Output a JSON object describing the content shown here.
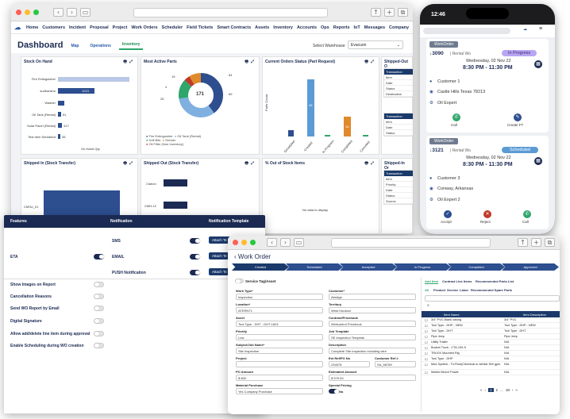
{
  "dashboard": {
    "nav": [
      "Home",
      "Customers",
      "Incident",
      "Proposal",
      "Project",
      "Work Orders",
      "Scheduler",
      "Field Tickets",
      "Smart Contracts",
      "Assets",
      "Inventory",
      "Accounts",
      "Ops",
      "Reports",
      "IoT",
      "Messages",
      "Company"
    ],
    "title": "Dashboard",
    "tabs": [
      "Map",
      "Operations",
      "Inventory"
    ],
    "warehouse_label": "Select Warehouse",
    "warehouse_value": "Evacuon",
    "panels": {
      "stock_on_hand": "Stock On Hand",
      "most_active": "Most Active Parts",
      "orders_status": "Current Orders Status (Part Request)",
      "shipped_out_top": "Shipped-Out O",
      "shipped_in": "Shipped In (Stock Transfer)",
      "shipped_out": "Shipped Out (Stock Transfer)",
      "out_of_stock": "% Out of Stock Items",
      "shipped_in_side": "Shipped-In Or"
    },
    "stock_items": [
      "Fire Extinguisher",
      "sudhanshu",
      "Washer",
      "Oil Tank (Rental)",
      "Solar Panel (Rental)",
      "Test Item Serialized"
    ],
    "stock_values": [
      "",
      "1213",
      "",
      "51",
      "417",
      "35"
    ],
    "stock_xlabel": "On-Hand Qty.",
    "donut_center": "171",
    "donut_labels": [
      "19",
      "4",
      "25",
      "69",
      "54"
    ],
    "legend": [
      "Fire Extinguisher",
      "Oil Tank (Rental)",
      "Drill Bits",
      "Oil Filter (Non Inventory)",
      "Grinder"
    ],
    "status_ylabel": "Parts Count",
    "status_values": [
      "6",
      "45",
      "1",
      "16",
      "1"
    ],
    "status_cats": [
      "Scheduled",
      "Created",
      "In Progress",
      "Completed",
      "Canceled"
    ],
    "side_rows": [
      "Transaction",
      "Item",
      "Date",
      "Status",
      "Destination"
    ],
    "side_rows2": [
      "Transaction",
      "Item",
      "Date",
      "Status"
    ],
    "side_rows3": [
      "Transaction",
      "Item",
      "Priority",
      "Date",
      "Status",
      "Source"
    ],
    "shipped_in_cat": "CMSU_01",
    "shipped_out_cats": [
      "Clarion",
      "CMH-12"
    ],
    "no_data": "No data to display"
  },
  "features": {
    "headers": [
      "Features",
      "Notification",
      "Notification Template"
    ],
    "eta": "ETA",
    "notifications": [
      "SMS",
      "EMAIL",
      "PUSH Notification"
    ],
    "attach": "Attach Te",
    "rows": [
      "Show Images on Report",
      "Cancellation Reasons",
      "Send WO Report by Email",
      "Digital Signature",
      "Allow add/delete line item during approval",
      "Enable Scheduling during WO creation"
    ]
  },
  "workorder": {
    "back": "‹",
    "title": "Work Order",
    "steps": [
      "Created",
      "Scheduled",
      "Accepted",
      "In Progress",
      "Completed",
      "Approved"
    ],
    "service_tag": "Service Tag/Asset",
    "fields": {
      "work_type": {
        "label": "Work Type*",
        "value": "Inspection"
      },
      "customer": {
        "label": "Customer*",
        "value": "Abridge"
      },
      "location": {
        "label": "Location*",
        "value": "ATERNT1"
      },
      "territory": {
        "label": "Territory",
        "value": "West Houston"
      },
      "asset": {
        "label": "Asset",
        "value": "Tool Type - DHT - DHT-1824"
      },
      "contract": {
        "label": "Contract/Pricebook",
        "value": "Wellcontrol Pricebook"
      },
      "priority": {
        "label": "Priority",
        "value": "Low"
      },
      "job_template": {
        "label": "Job Template",
        "value": "SE Inspection Template"
      },
      "subject": {
        "label": "Subject/Job Name*",
        "value": "Site Inspection"
      },
      "description": {
        "label": "Description",
        "value": "Complete Site Inspection including wire"
      },
      "project": {
        "label": "Project",
        "value": ""
      },
      "ext_ref": {
        "label": "Ext Ref/PO No",
        "value": "234578"
      },
      "customer_ref": {
        "label": "Customer Ref #",
        "value": "SA_58789"
      },
      "po_amount": {
        "label": "PO Amount",
        "value": "800"
      },
      "estimated": {
        "label": "Estimated Amount",
        "value": "575.00"
      },
      "material": {
        "label": "Material Purchase",
        "value": "Yes Company Purchase"
      },
      "special": {
        "label": "Special Pricing",
        "value": "No"
      }
    },
    "right_tabs": [
      "Add Item",
      "Contract Line Items",
      "Recommended Parts List"
    ],
    "filter_tabs": [
      "All",
      "Product",
      "Service",
      "Labor",
      "Recommended Spare Parts"
    ],
    "cols": [
      "Item Name",
      "Item Description"
    ],
    "items": [
      [
        "3/4\" PVC Blank casing",
        "3/4\" PVC"
      ],
      [
        "Tool Type - DHP - NEW",
        "Tool Type - DHP - NEW"
      ],
      [
        "Tool Type - DHT",
        "Tool Type - DHT"
      ],
      [
        "Pipe Jeep",
        "Pipe Jeep"
      ],
      [
        "Utility Trailer",
        "N/A"
      ],
      [
        "Bucket Truck - CTA-100-S",
        "N/A"
      ],
      [
        "TRUCK Mounted Rig",
        "N/A"
      ],
      [
        "Tool Type - DHP",
        "N/A"
      ],
      [
        "Mud System - Tri-Flow(Chemical or similar 500 gpm",
        "N/A"
      ],
      [
        "Mobile Bench Power",
        "N/A"
      ]
    ],
    "pages": [
      "«",
      "‹",
      "1",
      "2",
      "...",
      "18",
      "›",
      "»"
    ]
  },
  "phone": {
    "time": "12:46",
    "card1": {
      "badge": "WorkOrder",
      "status": "In Progress",
      "id": "3090",
      "type": "| Rental Wo",
      "date": "Wednesday, 02 Nov 22",
      "time": "8:30 PM - 11:30 PM",
      "customer": "Customer 1",
      "address": "Castle Hills Texas 78213",
      "tech": "Oil Expert",
      "actions": [
        "Call",
        "Create FT"
      ]
    },
    "card2": {
      "badge": "WorkOrder",
      "status": "Scheduled",
      "id": "3121",
      "type": "| Rental Wo",
      "date": "Wednesday, 02 Nov 22",
      "time": "8:30 PM - 11:30 PM",
      "customer": "Customer 3",
      "address": "Conway, Arkansas",
      "tech": "Oil Expert 2",
      "actions": [
        "Accept",
        "Reject",
        "Call"
      ]
    }
  },
  "colors": {
    "navy": "#1b2a52",
    "blue": "#2d4e8f",
    "green": "#2fa66b",
    "inprogress": "#b9a6f2",
    "scheduled": "#5b9bd5"
  }
}
